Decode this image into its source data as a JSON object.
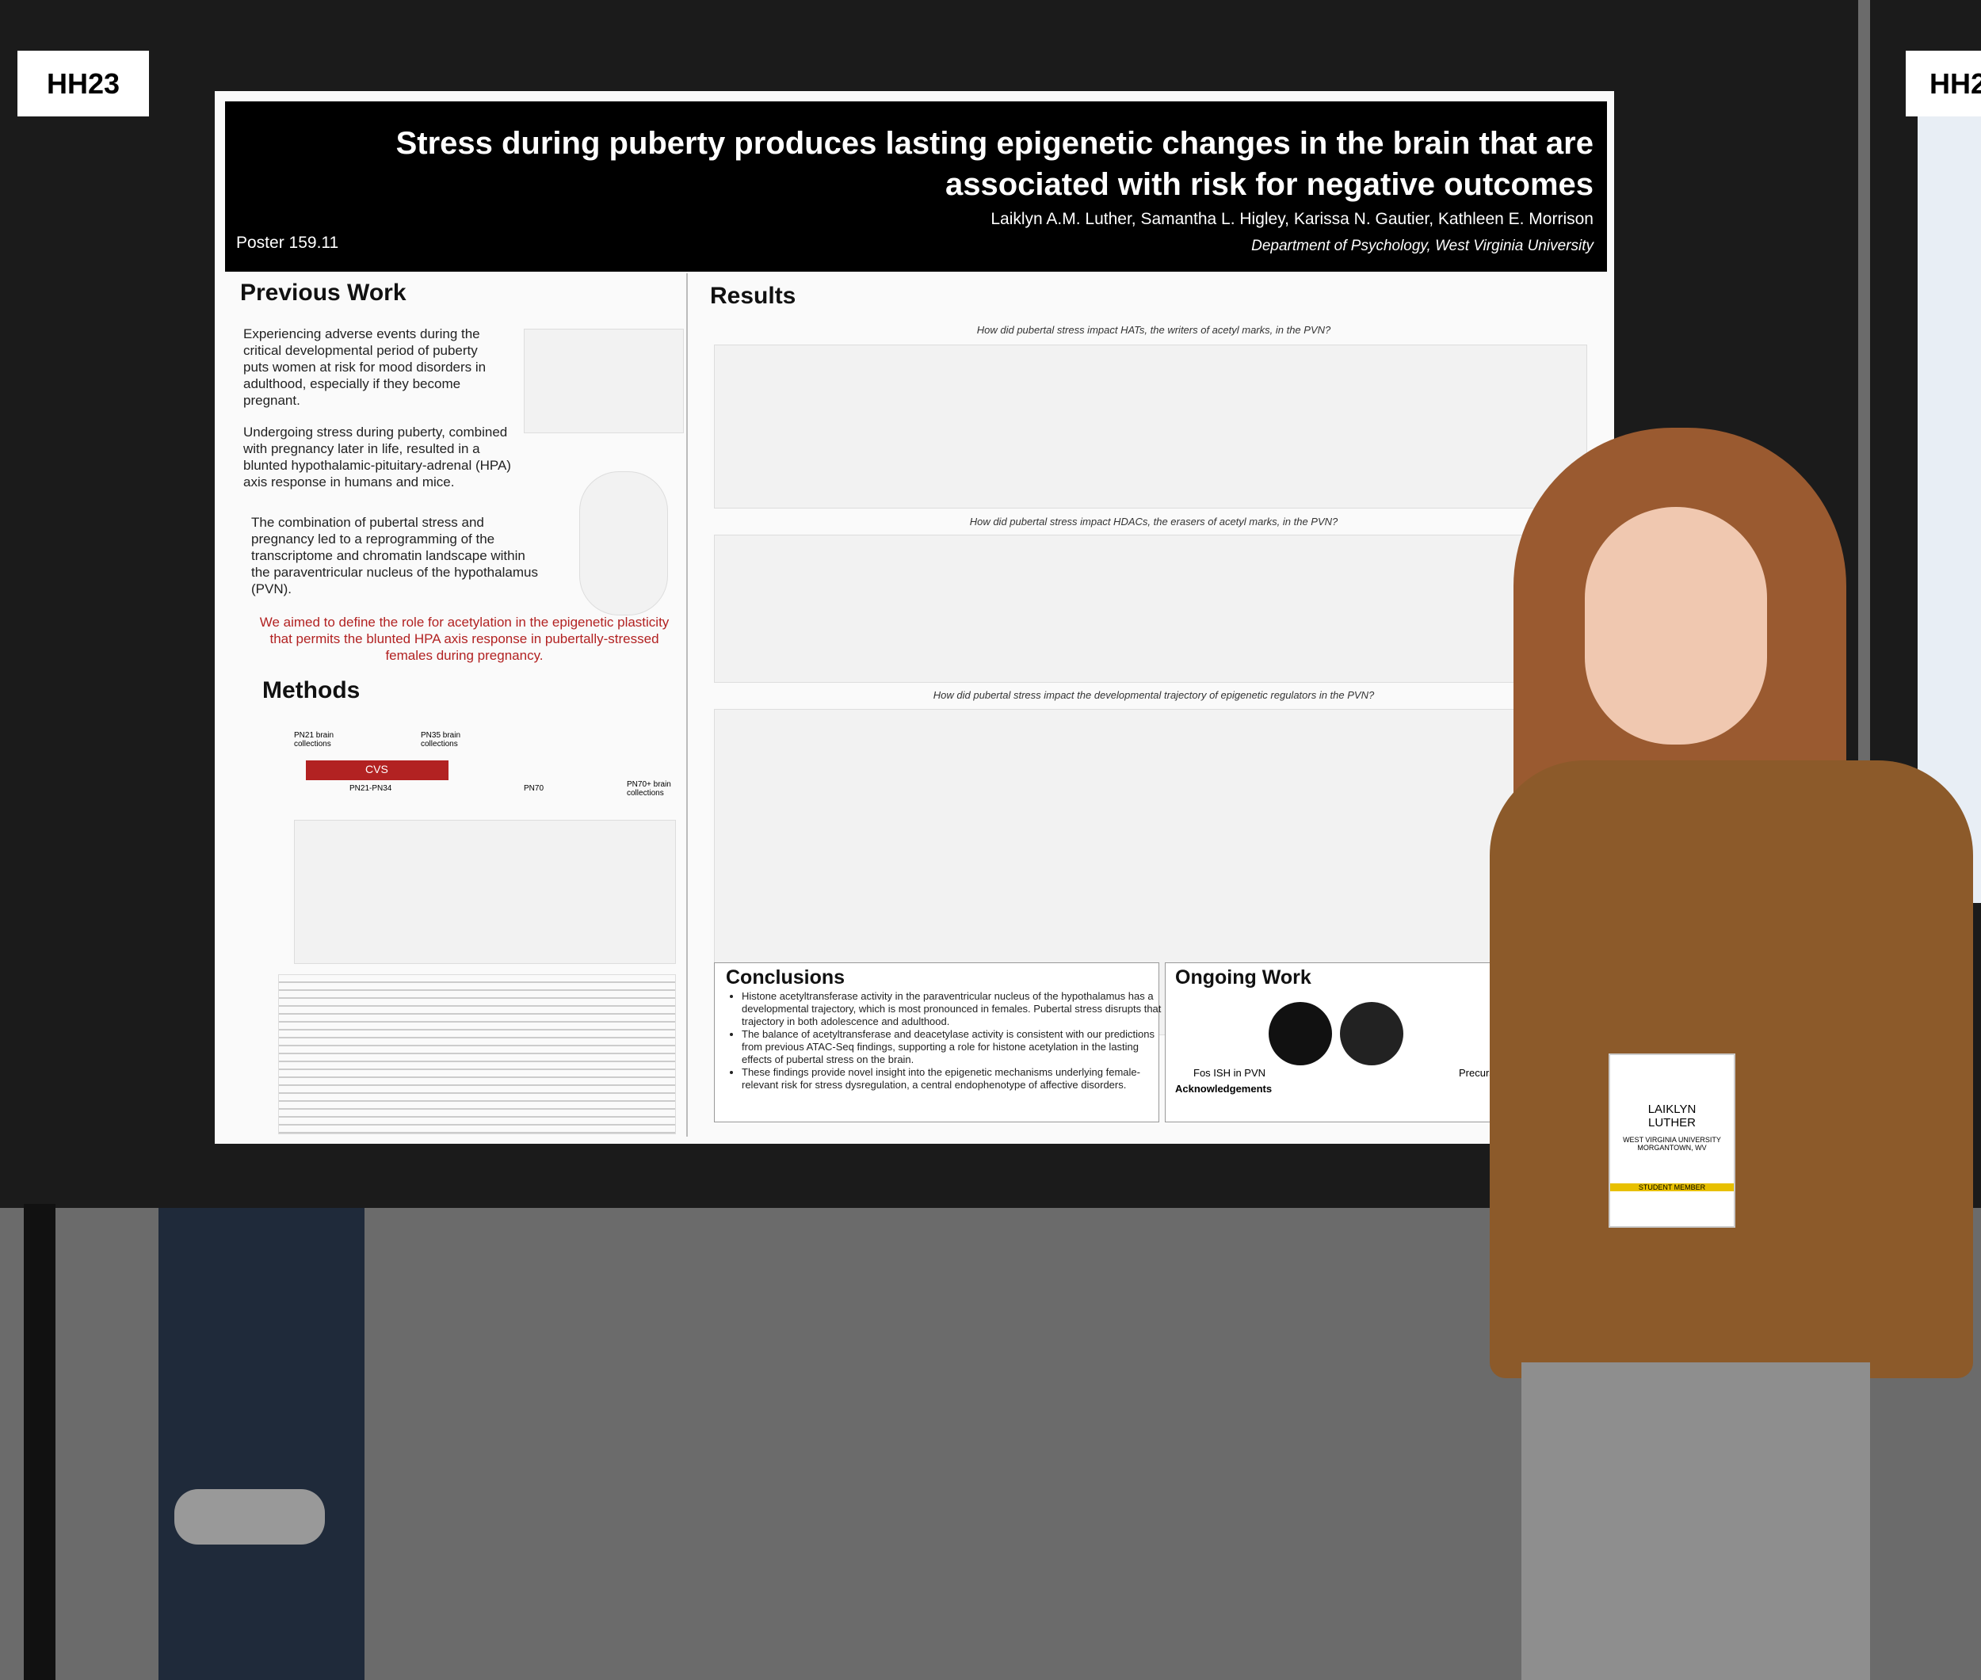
{
  "board": {
    "label_left": "HH23",
    "label_right": "HH2"
  },
  "poster": {
    "title": "Stress during puberty produces lasting epigenetic changes in the brain that are associated with risk for negative outcomes",
    "authors": "Laiklyn A.M. Luther, Samantha L. Higley, Karissa N. Gautier, Kathleen E. Morrison",
    "affiliation": "Department of Psychology, West Virginia University",
    "poster_number": "Poster 159.11",
    "previous_work": {
      "heading": "Previous Work",
      "paragraphs": [
        "Experiencing adverse events during the critical developmental period of puberty puts women at risk for mood disorders in adulthood, especially if they become pregnant.",
        "Undergoing stress during puberty, combined with pregnancy later in life, resulted in a blunted hypothalamic-pituitary-adrenal (HPA) axis response in humans and mice.",
        "The combination of pubertal stress and pregnancy led to a reprogramming of the transcriptome and chromatin landscape within the paraventricular nucleus of the hypothalamus (PVN)."
      ],
      "aim": "We aimed to define the role for acetylation in the epigenetic plasticity that permits the blunted HPA axis response in pubertally-stressed females during pregnancy."
    },
    "methods": {
      "heading": "Methods",
      "timeline": [
        "PN21 brain collections",
        "PN35 brain collections",
        "CVS",
        "PN21-PN34",
        "PN70",
        "PN70+ brain collections"
      ]
    },
    "results": {
      "heading": "Results",
      "questions": [
        "How did pubertal stress impact HATs, the writers of acetyl marks, in the PVN?",
        "How did pubertal stress impact HDACs, the erasers of acetyl marks, in the PVN?",
        "How did pubertal stress impact the developmental trajectory of epigenetic regulators in the PVN?"
      ]
    },
    "conclusions": {
      "heading": "Conclusions",
      "bullets": [
        "Histone acetyltransferase activity in the paraventricular nucleus of the hypothalamus has a developmental trajectory, which is most pronounced in females. Pubertal stress disrupts that trajectory in both adolescence and adulthood.",
        "The balance of acetyltransferase and deacetylase activity is consistent with our predictions from previous ATAC-Seq findings, supporting a role for histone acetylation in the lasting effects of pubertal stress on the brain.",
        "These findings provide novel insight into the epigenetic mechanisms underlying female-relevant risk for stress dysregulation, a central endophenotype of affective disorders."
      ]
    },
    "ongoing": {
      "heading": "Ongoing Work",
      "items": [
        "Fos ISH in PVN",
        "Precursors and co-regulators"
      ],
      "acknowledgements": "Acknowledgements"
    }
  },
  "badge": {
    "name_first": "LAIKLYN",
    "name_last": "LUTHER",
    "university": "WEST VIRGINIA UNIVERSITY",
    "city": "MORGANTOWN, WV",
    "member": "STUDENT MEMBER"
  }
}
